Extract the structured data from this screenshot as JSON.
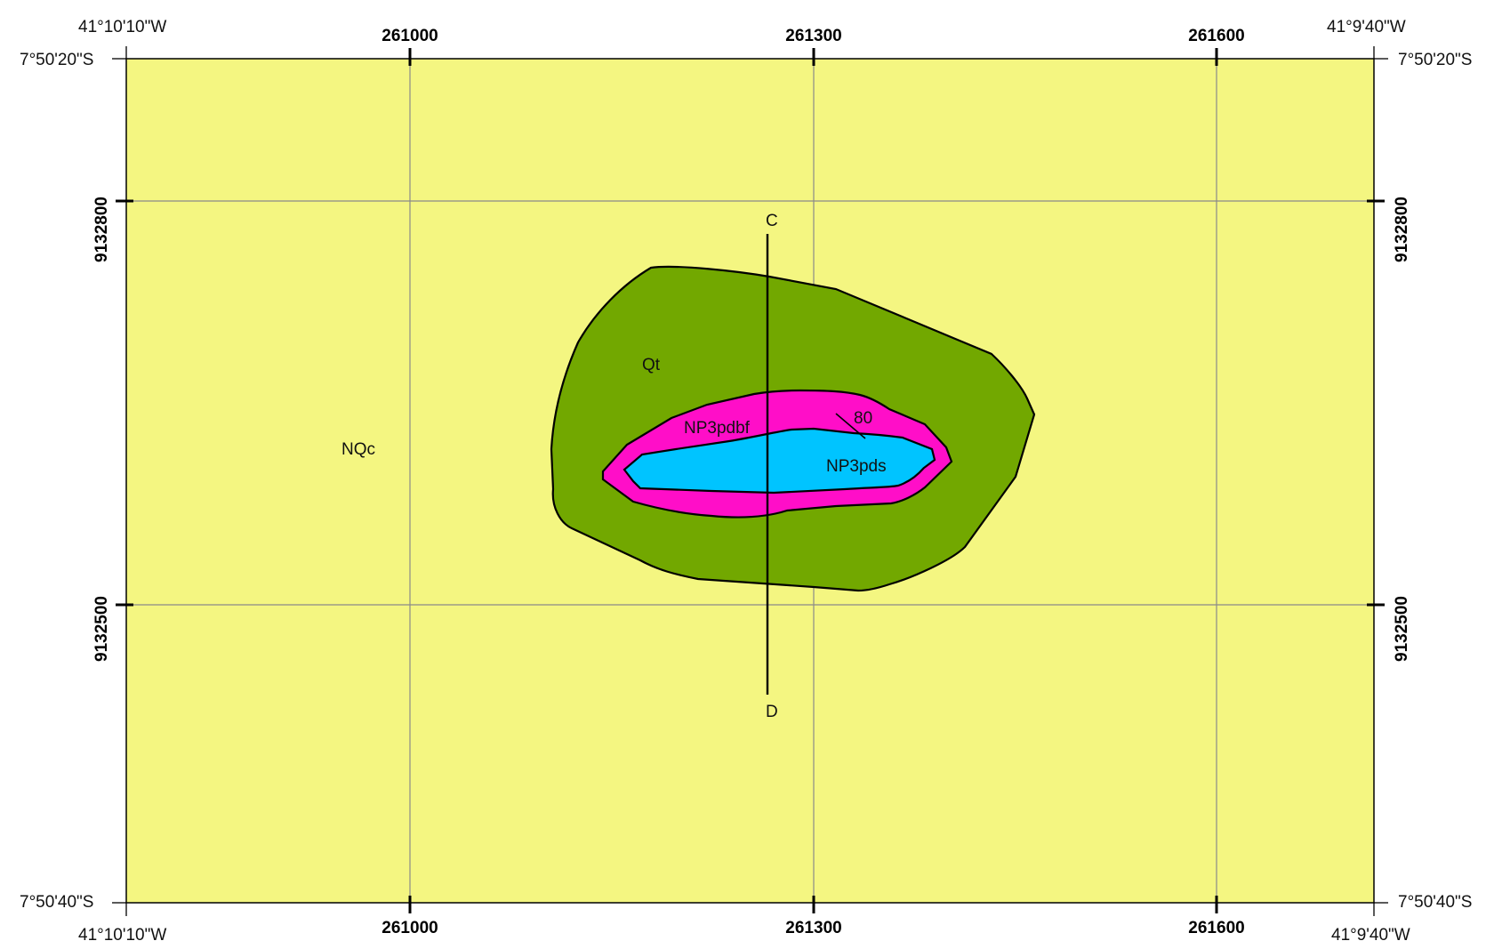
{
  "frame": {
    "corners": {
      "top_left_lon": "41°10'10\"W",
      "top_right_lon": "41°9'40\"W",
      "bottom_left_lon": "41°10'10\"W",
      "bottom_right_lon": "41°9'40\"W",
      "top_left_lat": "7°50'20\"S",
      "top_right_lat": "7°50'20\"S",
      "bottom_left_lat": "7°50'40\"S",
      "bottom_right_lat": "7°50'40\"S"
    },
    "easting_ticks": [
      "261000",
      "261300",
      "261600"
    ],
    "northing_ticks": [
      "9132800",
      "9132500"
    ]
  },
  "units": [
    {
      "code": "NQc",
      "color": "#f4f681"
    },
    {
      "code": "Qt",
      "color": "#72a800"
    },
    {
      "code": "NP3pdbf",
      "color": "#ff0ec8"
    },
    {
      "code": "NP3pds",
      "color": "#00c4ff"
    }
  ],
  "structure": {
    "dip": "80"
  },
  "section": {
    "start": "C",
    "end": "D"
  }
}
